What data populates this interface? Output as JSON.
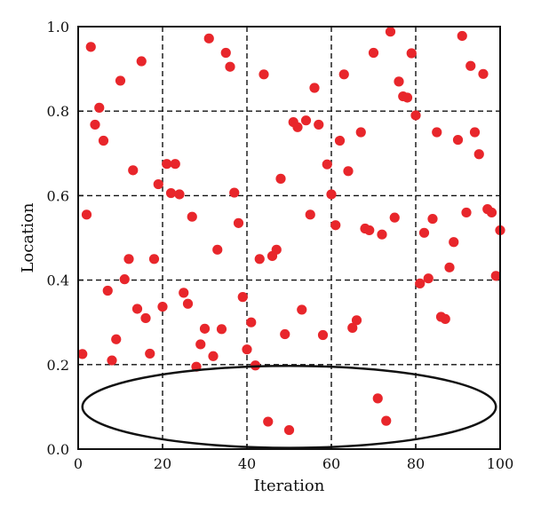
{
  "chart_data": {
    "type": "scatter",
    "title": "",
    "xlabel": "Iteration",
    "ylabel": "Location",
    "xlim": [
      0,
      100
    ],
    "ylim": [
      0,
      1
    ],
    "xticks": [
      "0",
      "20",
      "40",
      "60",
      "80",
      "100"
    ],
    "yticks": [
      "0.0",
      "0.2",
      "0.4",
      "0.6",
      "0.8",
      "1.0"
    ],
    "grid": "dashed",
    "marker_color": "#e8262b",
    "annotation": {
      "shape": "ellipse",
      "center": [
        50,
        0.1
      ],
      "x_radius": 49,
      "y_radius": 0.097
    },
    "points": [
      [
        1,
        0.225
      ],
      [
        2,
        0.555
      ],
      [
        3,
        0.952
      ],
      [
        4,
        0.768
      ],
      [
        5,
        0.808
      ],
      [
        6,
        0.73
      ],
      [
        7,
        0.375
      ],
      [
        8,
        0.21
      ],
      [
        9,
        0.26
      ],
      [
        10,
        0.872
      ],
      [
        11,
        0.402
      ],
      [
        12,
        0.45
      ],
      [
        13,
        0.66
      ],
      [
        14,
        0.332
      ],
      [
        15,
        0.918
      ],
      [
        16,
        0.31
      ],
      [
        17,
        0.226
      ],
      [
        18,
        0.45
      ],
      [
        19,
        0.627
      ],
      [
        20,
        0.337
      ],
      [
        21,
        0.675
      ],
      [
        22,
        0.606
      ],
      [
        23,
        0.675
      ],
      [
        24,
        0.603
      ],
      [
        25,
        0.37
      ],
      [
        26,
        0.344
      ],
      [
        27,
        0.55
      ],
      [
        28,
        0.195
      ],
      [
        29,
        0.248
      ],
      [
        30,
        0.285
      ],
      [
        31,
        0.972
      ],
      [
        32,
        0.22
      ],
      [
        33,
        0.472
      ],
      [
        34,
        0.284
      ],
      [
        35,
        0.938
      ],
      [
        36,
        0.905
      ],
      [
        37,
        0.607
      ],
      [
        38,
        0.535
      ],
      [
        39,
        0.36
      ],
      [
        40,
        0.236
      ],
      [
        41,
        0.3
      ],
      [
        42,
        0.198
      ],
      [
        43,
        0.45
      ],
      [
        44,
        0.887
      ],
      [
        45,
        0.065
      ],
      [
        46,
        0.457
      ],
      [
        47,
        0.472
      ],
      [
        48,
        0.64
      ],
      [
        49,
        0.272
      ],
      [
        50,
        0.045
      ],
      [
        51,
        0.774
      ],
      [
        52,
        0.762
      ],
      [
        53,
        0.33
      ],
      [
        54,
        0.778
      ],
      [
        55,
        0.555
      ],
      [
        56,
        0.855
      ],
      [
        57,
        0.768
      ],
      [
        58,
        0.27
      ],
      [
        59,
        0.674
      ],
      [
        60,
        0.603
      ],
      [
        61,
        0.53
      ],
      [
        62,
        0.73
      ],
      [
        63,
        0.887
      ],
      [
        64,
        0.658
      ],
      [
        65,
        0.287
      ],
      [
        66,
        0.305
      ],
      [
        67,
        0.75
      ],
      [
        68,
        0.522
      ],
      [
        69,
        0.518
      ],
      [
        70,
        0.938
      ],
      [
        71,
        0.12
      ],
      [
        72,
        0.508
      ],
      [
        73,
        0.067
      ],
      [
        74,
        0.988
      ],
      [
        75,
        0.548
      ],
      [
        76,
        0.87
      ],
      [
        77,
        0.835
      ],
      [
        78,
        0.832
      ],
      [
        79,
        0.937
      ],
      [
        80,
        0.79
      ],
      [
        81,
        0.392
      ],
      [
        82,
        0.512
      ],
      [
        83,
        0.404
      ],
      [
        84,
        0.545
      ],
      [
        85,
        0.75
      ],
      [
        86,
        0.313
      ],
      [
        87,
        0.308
      ],
      [
        88,
        0.43
      ],
      [
        89,
        0.49
      ],
      [
        90,
        0.732
      ],
      [
        91,
        0.978
      ],
      [
        92,
        0.56
      ],
      [
        93,
        0.907
      ],
      [
        94,
        0.75
      ],
      [
        95,
        0.698
      ],
      [
        96,
        0.888
      ],
      [
        97,
        0.568
      ],
      [
        98,
        0.56
      ],
      [
        99,
        0.41
      ],
      [
        100,
        0.518
      ]
    ]
  }
}
